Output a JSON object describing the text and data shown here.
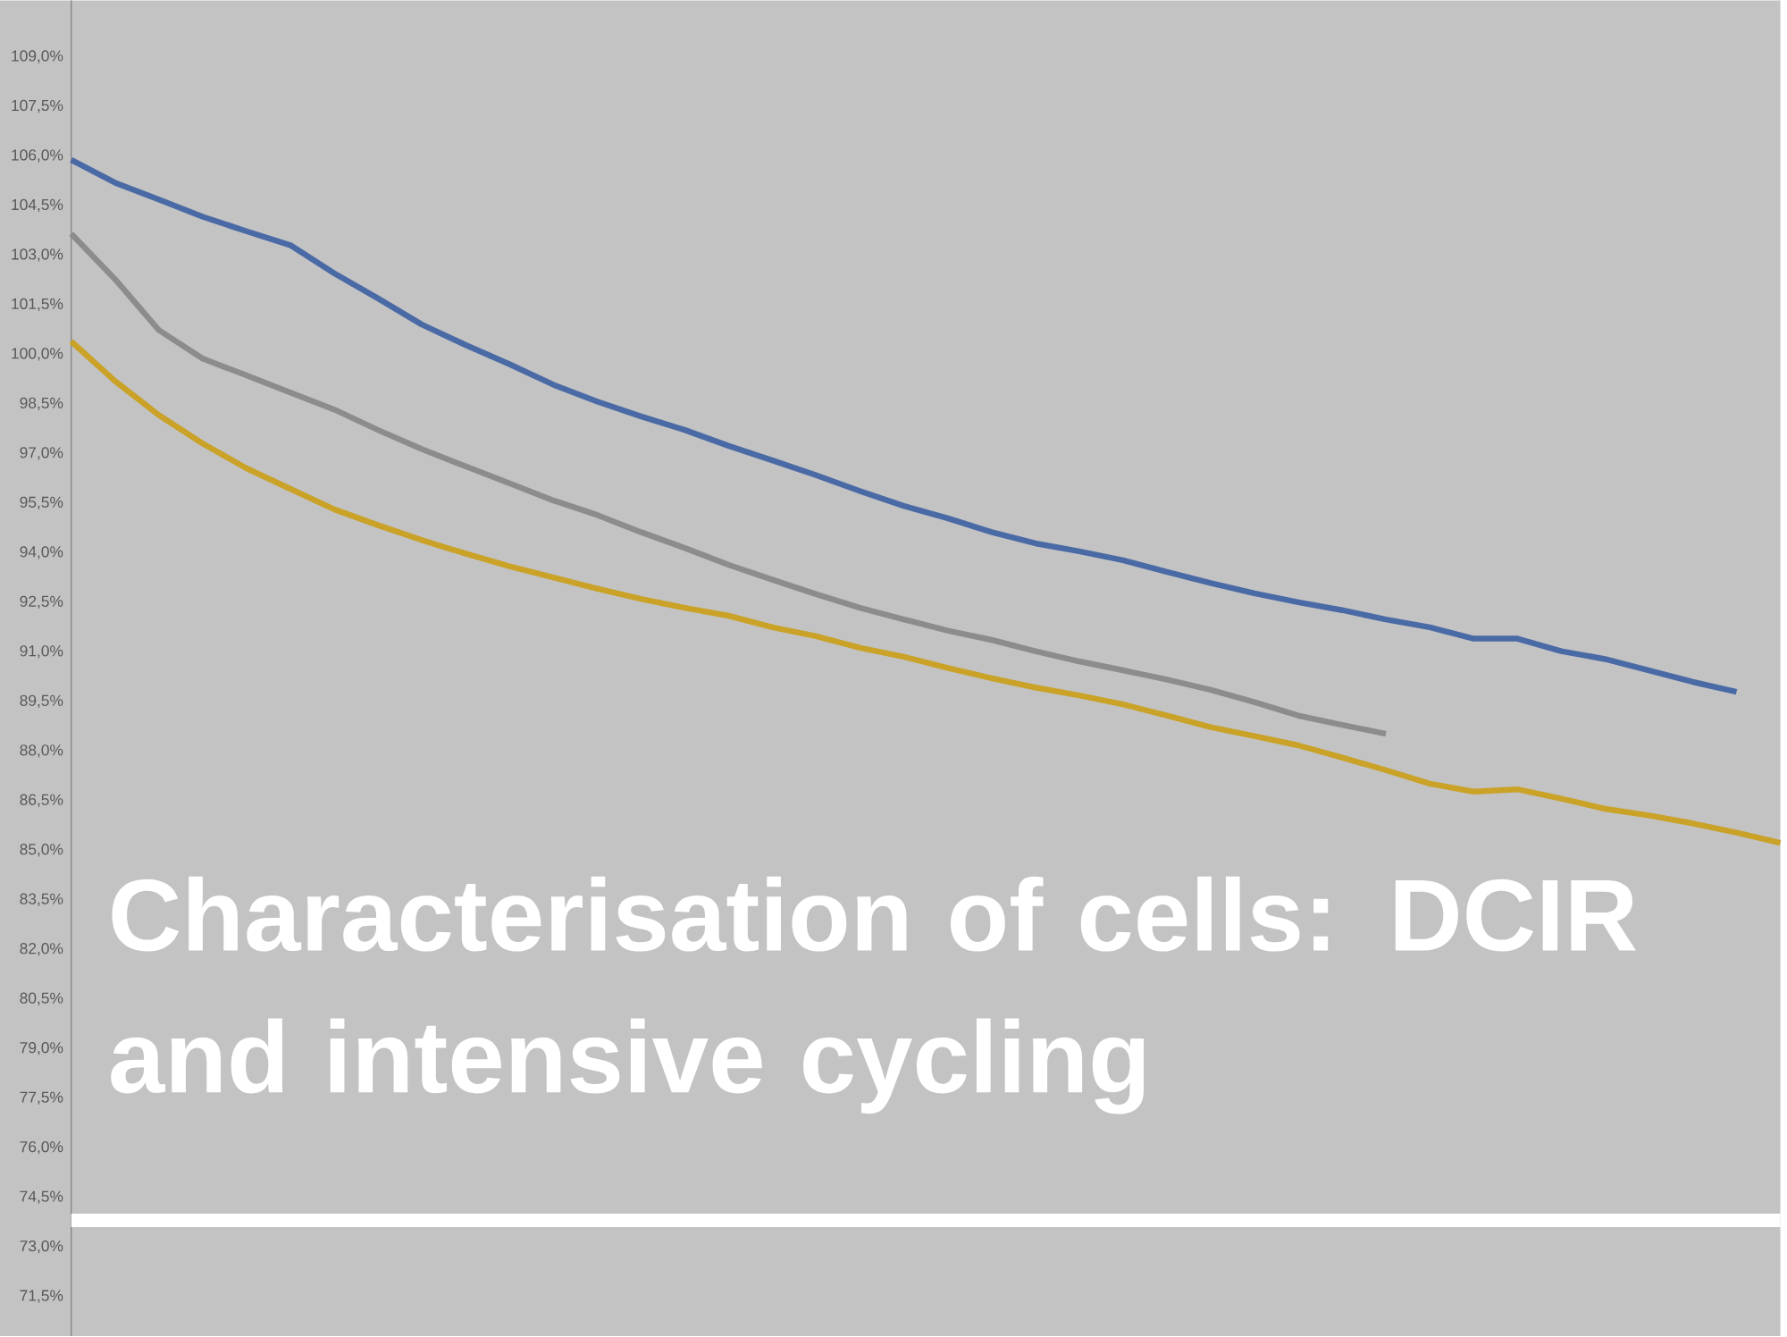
{
  "chart_data": {
    "type": "line",
    "title": "Characterisation of cells: DCIR and intensive cycling",
    "categories": [
      null,
      null,
      null,
      null,
      null,
      null,
      null,
      null,
      null,
      null,
      null,
      null,
      null,
      null,
      null,
      null,
      null,
      null,
      null,
      null,
      null,
      null,
      null,
      null,
      null,
      null,
      null,
      null,
      null,
      null,
      null,
      null,
      null,
      null,
      null,
      null,
      null,
      null,
      null,
      null
    ],
    "series": [
      {
        "color": "#4a6aa6",
        "values": [
          105.88,
          105.19,
          104.68,
          104.16,
          103.72,
          103.3,
          102.45,
          101.69,
          100.9,
          100.28,
          99.7,
          99.08,
          98.57,
          98.12,
          97.71,
          97.23,
          96.79,
          96.34,
          95.86,
          95.41,
          95.04,
          94.62,
          94.28,
          94.04,
          93.77,
          93.42,
          93.08,
          92.77,
          92.5,
          92.26,
          91.98,
          91.74,
          91.4,
          91.4,
          91.02,
          90.78,
          90.44,
          90.09,
          89.79,
          null
        ]
      },
      {
        "color": "#8c8c8c",
        "values": [
          103.65,
          102.27,
          100.73,
          99.87,
          99.36,
          98.84,
          98.33,
          97.71,
          97.13,
          96.61,
          96.1,
          95.58,
          95.14,
          94.62,
          94.14,
          93.63,
          93.18,
          92.74,
          92.33,
          91.98,
          91.64,
          91.36,
          91.02,
          90.71,
          90.44,
          90.16,
          89.85,
          89.48,
          89.07,
          88.79,
          88.52,
          null,
          null,
          null,
          null,
          null,
          null,
          null,
          null,
          null
        ]
      },
      {
        "color": "#c9a227",
        "values": [
          100.39,
          99.19,
          98.16,
          97.3,
          96.55,
          95.93,
          95.31,
          94.83,
          94.38,
          93.97,
          93.59,
          93.25,
          92.91,
          92.6,
          92.33,
          92.09,
          91.74,
          91.47,
          91.12,
          90.85,
          90.51,
          90.2,
          89.92,
          89.68,
          89.41,
          89.07,
          88.72,
          88.45,
          88.17,
          87.8,
          87.42,
          87.01,
          86.77,
          86.84,
          86.56,
          86.25,
          86.05,
          85.81,
          85.53,
          85.22
        ]
      }
    ],
    "ylim": [
      70.3,
      110.7
    ],
    "yticks": [
      {
        "value": 71.5,
        "label": "71,5%"
      },
      {
        "value": 73,
        "label": "73,0%"
      },
      {
        "value": 74.5,
        "label": "74,5%"
      },
      {
        "value": 76,
        "label": "76,0%"
      },
      {
        "value": 77.5,
        "label": "77,5%"
      },
      {
        "value": 79,
        "label": "79,0%"
      },
      {
        "value": 80.5,
        "label": "80,5%"
      },
      {
        "value": 82,
        "label": "82,0%"
      },
      {
        "value": 83.5,
        "label": "83,5%"
      },
      {
        "value": 85,
        "label": "85,0%"
      },
      {
        "value": 86.5,
        "label": "86,5%"
      },
      {
        "value": 88,
        "label": "88,0%"
      },
      {
        "value": 89.5,
        "label": "89,5%"
      },
      {
        "value": 91,
        "label": "91,0%"
      },
      {
        "value": 92.5,
        "label": "92,5%"
      },
      {
        "value": 94,
        "label": "94,0%"
      },
      {
        "value": 95.5,
        "label": "95,5%"
      },
      {
        "value": 97,
        "label": "97,0%"
      },
      {
        "value": 98.5,
        "label": "98,5%"
      },
      {
        "value": 100,
        "label": "100,0%"
      },
      {
        "value": 101.5,
        "label": "101,5%"
      },
      {
        "value": 103,
        "label": "103,0%"
      },
      {
        "value": 104.5,
        "label": "104,5%"
      },
      {
        "value": 106,
        "label": "106,0%"
      },
      {
        "value": 107.5,
        "label": "107,5%"
      },
      {
        "value": 109,
        "label": "109,0%"
      }
    ],
    "ref_lines": [
      {
        "axis": "y",
        "value": 73.8,
        "color": "#ffffff"
      }
    ],
    "tick_labels": "y",
    "grid": false,
    "marker": "none"
  }
}
